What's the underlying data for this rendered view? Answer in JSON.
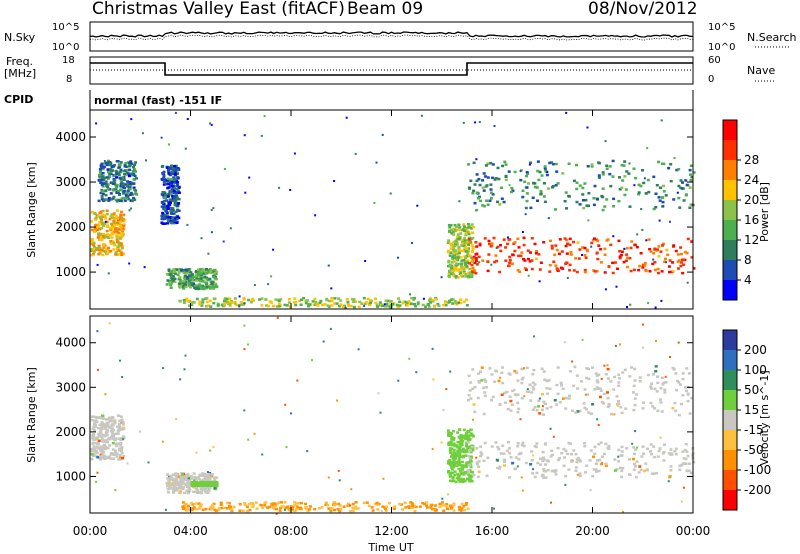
{
  "header": {
    "title": "Christmas Valley East (fitACF)",
    "beam": "Beam 09",
    "date": "08/Nov/2012"
  },
  "panels": {
    "nsky_label": "N.Sky",
    "nsky_ticks": [
      "10^5",
      "10^0"
    ],
    "nsearch_label": "N.Search",
    "nsearch_ticks": [
      "10^5",
      "10^0"
    ],
    "freq_label_1": "Freq.",
    "freq_label_2": "[MHz]",
    "freq_ticks": [
      "18",
      "8"
    ],
    "nave_label": "Nave",
    "nave_ticks": [
      "60",
      "0"
    ],
    "cpid_label": "CPID",
    "cpid_text": "normal (fast) -151 IF"
  },
  "chart_data": [
    {
      "type": "heatmap",
      "name": "power",
      "ylabel": "Slant Range [km]",
      "xlabel": "Time UT",
      "x_ticks": [
        "00:00",
        "04:00",
        "08:00",
        "12:00",
        "16:00",
        "20:00",
        "00:00"
      ],
      "y_ticks": [
        "1000",
        "2000",
        "3000",
        "4000"
      ],
      "xlim_hours": [
        0,
        24
      ],
      "ylim_km": [
        180,
        4600
      ],
      "colorbar_label": "Power [dB]",
      "colorbar_ticks": [
        "4",
        "8",
        "12",
        "16",
        "20",
        "24",
        "28"
      ],
      "colorbar_colors": [
        "#0000ff",
        "#1e4bb4",
        "#2e7d5c",
        "#4caf50",
        "#8bc34a",
        "#ffc200",
        "#ff8000",
        "#ff3000",
        "#ff0000"
      ],
      "regions": [
        {
          "t0": 0.0,
          "t1": 1.3,
          "r0": 1400,
          "r1": 2400,
          "level": 20
        },
        {
          "t0": 0.3,
          "t1": 1.8,
          "r0": 2600,
          "r1": 3500,
          "level": 8
        },
        {
          "t0": 2.8,
          "t1": 3.5,
          "r0": 2100,
          "r1": 3400,
          "level": 6
        },
        {
          "t0": 3.0,
          "t1": 5.0,
          "r0": 650,
          "r1": 1100,
          "level": 12
        },
        {
          "t0": 3.5,
          "t1": 15.0,
          "r0": 250,
          "r1": 450,
          "level": 16
        },
        {
          "t0": 14.2,
          "t1": 15.2,
          "r0": 900,
          "r1": 2100,
          "level": 16
        },
        {
          "t0": 15.0,
          "t1": 24.0,
          "r0": 1000,
          "r1": 1800,
          "level": 26
        },
        {
          "t0": 15.0,
          "t1": 24.0,
          "r0": 2400,
          "r1": 3500,
          "level": 10
        }
      ]
    },
    {
      "type": "heatmap",
      "name": "velocity",
      "ylabel": "Slant Range [km]",
      "xlabel": "Time UT",
      "x_ticks": [
        "00:00",
        "04:00",
        "08:00",
        "12:00",
        "16:00",
        "20:00",
        "00:00"
      ],
      "y_ticks": [
        "1000",
        "2000",
        "3000",
        "4000"
      ],
      "xlim_hours": [
        0,
        24
      ],
      "ylim_km": [
        180,
        4600
      ],
      "colorbar_label": "Velocity [m s^-1]",
      "colorbar_ticks": [
        "200",
        "100",
        "50",
        "15",
        "-15",
        "-50",
        "-100",
        "-200"
      ],
      "colorbar_colors": [
        "#2d3aa0",
        "#2f6fc0",
        "#2e8f5c",
        "#6fcf3c",
        "#c8c8c0",
        "#ffc040",
        "#ff9000",
        "#ff5000",
        "#ff0000"
      ],
      "regions": [
        {
          "t0": 0.0,
          "t1": 1.3,
          "r0": 1400,
          "r1": 2400,
          "level": 0
        },
        {
          "t0": 3.0,
          "t1": 5.0,
          "r0": 650,
          "r1": 1100,
          "level": 0
        },
        {
          "t0": 4.0,
          "t1": 5.0,
          "r0": 820,
          "r1": 900,
          "level": 30
        },
        {
          "t0": 3.5,
          "t1": 15.0,
          "r0": 250,
          "r1": 450,
          "level": -50
        },
        {
          "t0": 14.2,
          "t1": 15.2,
          "r0": 900,
          "r1": 2100,
          "level": 30
        },
        {
          "t0": 15.0,
          "t1": 24.0,
          "r0": 1000,
          "r1": 1800,
          "level": 0
        },
        {
          "t0": 15.0,
          "t1": 24.0,
          "r0": 2400,
          "r1": 3500,
          "level": 0
        }
      ]
    }
  ]
}
